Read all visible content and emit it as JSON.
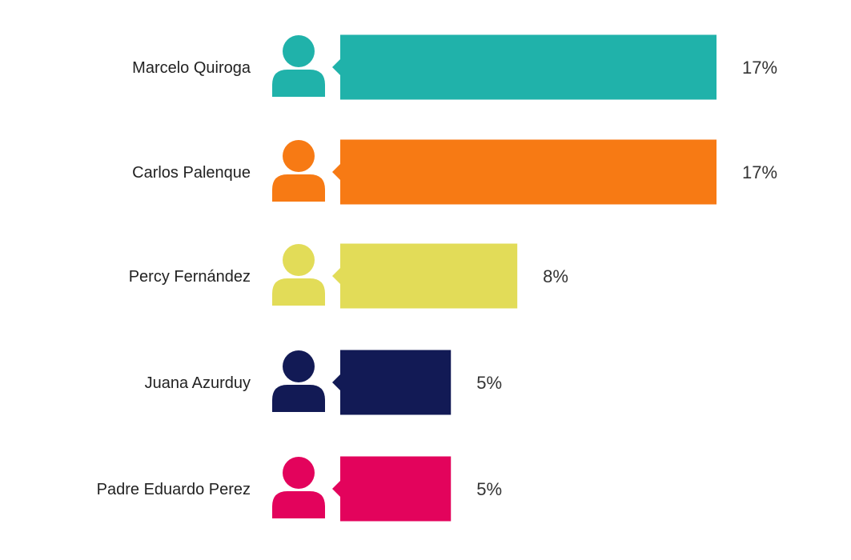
{
  "chart_data": {
    "type": "bar",
    "orientation": "horizontal",
    "categories": [
      "Marcelo Quiroga",
      "Carlos Palenque",
      "Percy Fernández",
      "Juana Azurduy",
      "Padre Eduardo Perez"
    ],
    "values": [
      17,
      17,
      8,
      5,
      5
    ],
    "value_labels": [
      "17%",
      "17%",
      "8%",
      "5%",
      "5%"
    ],
    "unit": "%",
    "colors": [
      "#20b2aa",
      "#f77a14",
      "#e2dc58",
      "#121a55",
      "#e3035c"
    ],
    "icon": "person-icon",
    "grid": false,
    "legend": "none"
  }
}
